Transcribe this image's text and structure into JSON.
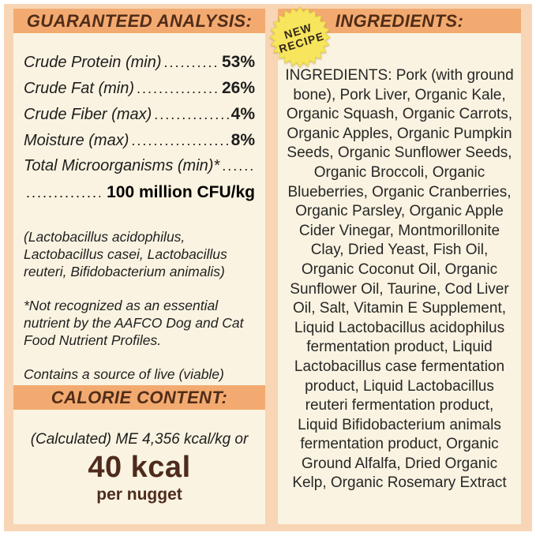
{
  "colors": {
    "page_bg": "#ffffff",
    "border_peach": "#f8d5b4",
    "panel_cream": "#faf3e1",
    "band_orange": "#f3aa70",
    "heading_brown": "#502d18",
    "value_brown": "#4e2b1d",
    "body_text": "#272727",
    "badge_yellow": "#f6e55d"
  },
  "left_panel": {
    "header": "GUARANTEED ANALYSIS:",
    "rows": [
      {
        "label": "Crude Protein (min)",
        "dots": ".............",
        "value": "53%"
      },
      {
        "label": "Crude Fat (min)",
        "dots": "..................",
        "value": "26%"
      },
      {
        "label": "Crude Fiber (max)",
        "dots": "...............",
        "value": "4%"
      },
      {
        "label": "Moisture (max)",
        "dots": "..................",
        "value": "8%"
      },
      {
        "label": "Total Microorganisms (min)*",
        "dots": "..........",
        "value": ""
      }
    ],
    "cfu_line": {
      "dots": "..............",
      "value": "100 million CFU/kg"
    },
    "paragraphs": {
      "organisms": "(Lactobacillus acidophilus, Lactobacillus casei, Lactobacillus reuteri, Bifidobacterium animalis)",
      "footnote": "*Not recognized as an essential nutrient by the AAFCO Dog and Cat Food Nutrient Profiles.",
      "live_note": "Contains a source of live (viable) naturally occurring microorganisms"
    },
    "calorie": {
      "header": "CALORIE CONTENT:",
      "line1": "(Calculated) ME 4,356 kcal/kg or",
      "value": "40 kcal",
      "unit": "per nugget"
    }
  },
  "right_panel": {
    "header": "INGREDIENTS:",
    "badge": {
      "line1": "NEW",
      "line2": "RECIPE"
    },
    "body": "INGREDIENTS: Pork (with ground bone), Pork Liver, Organic Kale, Organic Squash, Organic Carrots, Organic Apples, Organic Pumpkin Seeds, Organic Sunflower Seeds, Organic Broccoli, Organic Blueberries, Organic Cranberries, Organic Parsley, Organic Apple Cider Vinegar, Montmorillonite Clay, Dried Yeast, Fish Oil, Organic Coconut Oil, Organic Sunflower Oil, Taurine, Cod Liver Oil, Salt, Vitamin E Supplement, Liquid Lactobacillus acidophilus fermentation product, Liquid Lactobacillus case fermentation product, Liquid Lactobacillus reuteri fermentation product, Liquid Bifidobacterium animals fermentation product, Organic Ground Alfalfa, Dried Organic Kelp, Organic Rosemary Extract"
  }
}
